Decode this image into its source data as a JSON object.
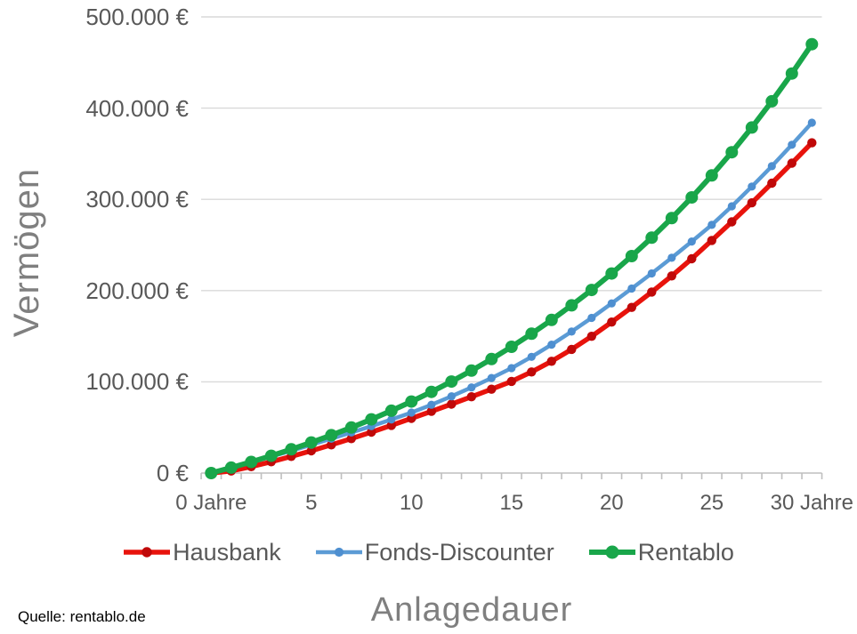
{
  "chart_data": {
    "type": "line",
    "title": "",
    "xlabel": "Anlagedauer",
    "ylabel": "Vermögen",
    "xlim": [
      0,
      30
    ],
    "ylim": [
      0,
      500000
    ],
    "grid": true,
    "legend_position": "bottom",
    "grid_color": "#d9d9d9",
    "axis_color": "#bfbfbf",
    "tick_label_color": "#595959",
    "title_color": "#7f7f7f",
    "background_color": "#ffffff",
    "x": [
      0,
      1,
      2,
      3,
      4,
      5,
      6,
      7,
      8,
      9,
      10,
      11,
      12,
      13,
      14,
      15,
      16,
      17,
      18,
      19,
      20,
      21,
      22,
      23,
      24,
      25,
      26,
      27,
      28,
      29,
      30
    ],
    "x_ticks": [
      {
        "value": 0,
        "label": "0 Jahre"
      },
      {
        "value": 5,
        "label": "5"
      },
      {
        "value": 10,
        "label": "10"
      },
      {
        "value": 15,
        "label": "15"
      },
      {
        "value": 20,
        "label": "20"
      },
      {
        "value": 25,
        "label": "25"
      },
      {
        "value": 30,
        "label": "30 Jahre"
      }
    ],
    "y_ticks": [
      {
        "value": 0,
        "label": "0 €"
      },
      {
        "value": 100000,
        "label": "100.000 €"
      },
      {
        "value": 200000,
        "label": "200.000 €"
      },
      {
        "value": 300000,
        "label": "300.000 €"
      },
      {
        "value": 400000,
        "label": "400.000 €"
      },
      {
        "value": 500000,
        "label": "500.000 €"
      }
    ],
    "series": [
      {
        "name": "Hausbank",
        "color": "#e8130c",
        "marker_color": "#c00909",
        "line_width": 5.5,
        "marker_radius": 5.2,
        "values": [
          0,
          2200,
          7000,
          12400,
          18200,
          24400,
          30900,
          37700,
          44800,
          52200,
          59900,
          67600,
          75500,
          83600,
          91900,
          100500,
          110800,
          122500,
          135600,
          149900,
          165500,
          181600,
          198400,
          216100,
          234900,
          255000,
          275300,
          296200,
          317700,
          339700,
          362000
        ]
      },
      {
        "name": "Fonds-Discounter",
        "color": "#5b9bd5",
        "marker_color": "#4e8fd0",
        "line_width": 4.5,
        "marker_radius": 4.6,
        "values": [
          0,
          5800,
          11800,
          18000,
          24400,
          31000,
          37600,
          44400,
          51400,
          58700,
          66300,
          74900,
          84100,
          93900,
          104200,
          115000,
          127400,
          140700,
          155100,
          170100,
          186000,
          202200,
          218800,
          236000,
          253800,
          272000,
          292400,
          314000,
          336400,
          359800,
          384000
        ]
      },
      {
        "name": "Rentablo",
        "color": "#19a64a",
        "marker_color": "#19a64a",
        "line_width": 6,
        "marker_radius": 7,
        "values": [
          0,
          5900,
          12200,
          18900,
          26000,
          33500,
          41500,
          49900,
          58900,
          68300,
          78400,
          89000,
          100300,
          112300,
          125000,
          138400,
          152700,
          167800,
          183800,
          200700,
          218700,
          237800,
          258000,
          279400,
          302100,
          326200,
          351700,
          378800,
          407500,
          437900,
          470100
        ]
      }
    ]
  },
  "source_note": "Quelle: rentablo.de"
}
